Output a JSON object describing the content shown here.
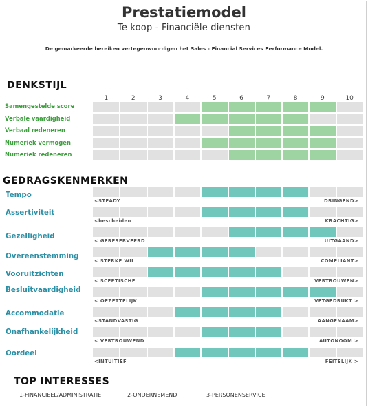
{
  "header": {
    "title": "Prestatiemodel",
    "subtitle": "Te koop - Financiële diensten",
    "description": "De gemarkeerde bereiken vertegenwoordigen het Sales - Financial Services Performance Model."
  },
  "colors": {
    "thinking": "#9ed4a2",
    "behavior": "#71c7bb",
    "track": "#e1e1e1"
  },
  "denkstijl": {
    "title": "DENKSTIJL",
    "scale": [
      "1",
      "2",
      "3",
      "4",
      "5",
      "6",
      "7",
      "8",
      "9",
      "10"
    ],
    "rows": [
      {
        "label": "Samengestelde score",
        "range": [
          5,
          9
        ]
      },
      {
        "label": "Verbale vaardigheid",
        "range": [
          4,
          8
        ]
      },
      {
        "label": "Verbaal redeneren",
        "range": [
          6,
          9
        ]
      },
      {
        "label": "Numeriek vermogen",
        "range": [
          5,
          9
        ]
      },
      {
        "label": "Numeriek redeneren",
        "range": [
          6,
          9
        ]
      }
    ]
  },
  "gedrag": {
    "title": "GEDRAGSKENMERKEN",
    "rows": [
      {
        "label": "Tempo",
        "left": "<STEADY",
        "right": "DRINGEND>",
        "range": [
          5,
          8
        ]
      },
      {
        "label": "Assertiviteit",
        "left": "<bescheiden",
        "right": "KRACHTIG>",
        "range": [
          5,
          8
        ]
      },
      {
        "label": "Gezelligheid",
        "left": "< GERESERVEERD",
        "right": "UITGAAND>",
        "range": [
          6,
          9
        ]
      },
      {
        "label": "Overeenstemming",
        "left": "< STERKE WIL",
        "right": "COMPLIANT>",
        "range": [
          3,
          6
        ]
      },
      {
        "label": "Vooruitzichten",
        "left": "< SCEPTISCHE",
        "right": "VERTROUWEN>",
        "range": [
          3,
          7
        ]
      },
      {
        "label": "Besluitvaardigheid",
        "left": "< OPZETTELIJK",
        "right": "VETGEDRUKT >",
        "range": [
          5,
          9
        ]
      },
      {
        "label": "Accommodatie",
        "left": "<STANDVASTIG",
        "right": "AANGENAAM>",
        "range": [
          4,
          7
        ]
      },
      {
        "label": "Onafhankelijkheid",
        "left": "< VERTROUWEND",
        "right": "AUTONOOM >",
        "range": [
          5,
          7
        ]
      },
      {
        "label": "Oordeel",
        "left": "<INTUITIEF",
        "right": "FEITELIJK >",
        "range": [
          4,
          8
        ]
      }
    ]
  },
  "top_interests": {
    "title": "TOP INTERESSES",
    "items": [
      "1-FINANCIEEL/ADMINISTRATIE",
      "2-ONDERNEMEND",
      "3-PERSONENSERVICE"
    ]
  }
}
